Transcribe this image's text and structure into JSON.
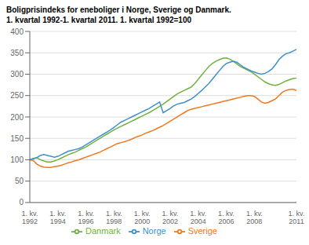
{
  "chart_data": {
    "type": "line",
    "title": "Boligprisindeks for eneboliger i Norge, Sverige og Danmark.",
    "subtitle": "1. kvartal 1992-1. kvartal 2011. 1. kvartal 1992=100",
    "categories": [
      "1. kv.\n1992",
      null,
      null,
      null,
      null,
      null,
      null,
      null,
      "1. kv.\n1994",
      null,
      null,
      null,
      null,
      null,
      null,
      null,
      "1. kv.\n1996",
      null,
      null,
      null,
      null,
      null,
      null,
      null,
      "1. kv.\n1998",
      null,
      null,
      null,
      null,
      null,
      null,
      null,
      "1. kv.\n2000",
      null,
      null,
      null,
      null,
      null,
      null,
      null,
      "1. kv.\n2002",
      null,
      null,
      null,
      null,
      null,
      null,
      null,
      "1. kv.\n2004",
      null,
      null,
      null,
      null,
      null,
      null,
      null,
      "1. kv.\n2006",
      null,
      null,
      null,
      null,
      null,
      null,
      null,
      "1. kv.\n2008",
      null,
      null,
      null,
      null,
      null,
      null,
      null,
      null,
      null,
      null,
      null,
      "1. kv.\n2011"
    ],
    "series": [
      {
        "name": "Sverige",
        "color": "#f07820",
        "values": [
          100,
          98,
          90,
          85,
          83,
          82,
          82,
          84,
          85,
          87,
          90,
          93,
          95,
          98,
          100,
          103,
          106,
          109,
          112,
          115,
          118,
          122,
          126,
          130,
          134,
          138,
          140,
          142,
          145,
          148,
          152,
          155,
          158,
          162,
          165,
          168,
          172,
          176,
          180,
          185,
          190,
          195,
          200,
          205,
          210,
          215,
          218,
          220,
          222,
          224,
          226,
          228,
          230,
          232,
          234,
          236,
          238,
          240,
          242,
          244,
          246,
          248,
          250,
          250,
          248,
          242,
          235,
          232,
          234,
          238,
          242,
          250,
          258,
          262,
          264,
          265,
          262
        ]
      },
      {
        "name": "Danmark",
        "color": "#70b040",
        "values": [
          100,
          103,
          105,
          100,
          97,
          95,
          95,
          97,
          100,
          104,
          108,
          112,
          115,
          118,
          122,
          126,
          130,
          135,
          140,
          145,
          150,
          155,
          160,
          165,
          170,
          174,
          178,
          182,
          186,
          190,
          194,
          198,
          202,
          206,
          210,
          215,
          220,
          225,
          230,
          236,
          242,
          248,
          254,
          258,
          262,
          266,
          270,
          278,
          288,
          298,
          308,
          318,
          325,
          330,
          334,
          337,
          338,
          335,
          330,
          324,
          318,
          314,
          310,
          306,
          300,
          294,
          288,
          282,
          278,
          275,
          274,
          276,
          280,
          284,
          287,
          290,
          291
        ]
      },
      {
        "name": "Norge",
        "color": "#4090c8",
        "values": [
          100,
          102,
          105,
          110,
          112,
          110,
          108,
          106,
          108,
          112,
          116,
          120,
          122,
          124,
          126,
          130,
          135,
          140,
          145,
          150,
          155,
          160,
          165,
          170,
          176,
          182,
          188,
          192,
          196,
          200,
          204,
          208,
          212,
          216,
          220,
          225,
          230,
          235,
          210,
          215,
          220,
          226,
          230,
          232,
          234,
          238,
          242,
          248,
          255,
          262,
          270,
          278,
          288,
          298,
          308,
          318,
          325,
          328,
          330,
          328,
          322,
          316,
          312,
          308,
          305,
          302,
          300,
          302,
          306,
          312,
          322,
          334,
          342,
          348,
          350,
          354,
          358
        ]
      }
    ],
    "ylim": [
      0,
      400
    ],
    "yticks": [
      0,
      50,
      100,
      150,
      200,
      250,
      300,
      350,
      400
    ],
    "grid": true,
    "legend": "bottom"
  }
}
